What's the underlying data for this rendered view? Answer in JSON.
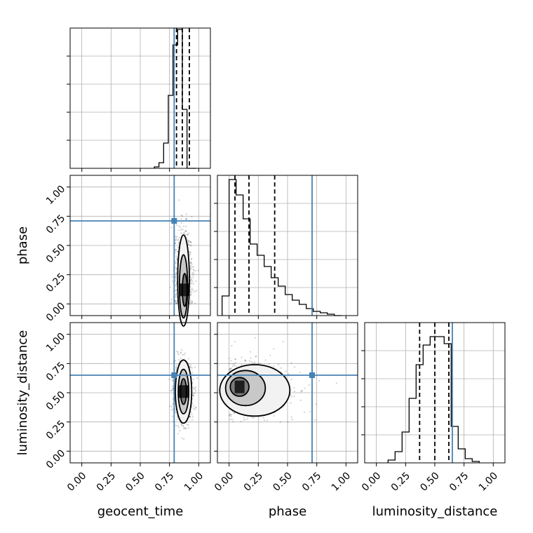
{
  "chart_data": {
    "type": "corner",
    "parameters": [
      "geocent_time",
      "phase",
      "luminosity_distance"
    ],
    "axis_limits": {
      "geocent_time": [
        -0.1,
        1.1
      ],
      "phase": [
        -0.1,
        1.1
      ],
      "luminosity_distance": [
        -0.1,
        1.1
      ]
    },
    "tick_values": [
      0.0,
      0.25,
      0.5,
      0.75,
      1.0
    ],
    "tick_labels": [
      "0.00",
      "0.25",
      "0.50",
      "0.75",
      "1.00"
    ],
    "grid": true,
    "colors": {
      "truth": "#4682b4",
      "hist": "#000000",
      "grid": "#b0b0b0",
      "density": "#000000"
    },
    "truths": {
      "geocent_time": 0.79,
      "phase": 0.71,
      "luminosity_distance": 0.65
    },
    "histograms": [
      {
        "parameter": "geocent_time",
        "bin_edges": [
          0.62,
          0.66,
          0.7,
          0.74,
          0.78,
          0.82,
          0.86,
          0.9,
          0.94,
          0.98
        ],
        "counts": [
          0.01,
          0.04,
          0.18,
          0.52,
          0.88,
          0.99,
          0.42,
          0.0,
          0.0
        ],
        "quantiles": [
          0.81,
          0.86,
          0.92
        ],
        "ylim": [
          0,
          1.0
        ]
      },
      {
        "parameter": "phase",
        "bin_edges": [
          -0.06,
          0.0,
          0.06,
          0.12,
          0.18,
          0.24,
          0.3,
          0.36,
          0.42,
          0.48,
          0.54,
          0.6,
          0.66,
          0.72,
          0.78,
          0.84,
          0.9,
          0.96
        ],
        "counts": [
          0.14,
          0.97,
          0.86,
          0.69,
          0.51,
          0.43,
          0.35,
          0.27,
          0.21,
          0.15,
          0.11,
          0.08,
          0.05,
          0.03,
          0.02,
          0.01,
          0.0
        ],
        "quantiles": [
          0.05,
          0.17,
          0.39
        ],
        "ylim": [
          0,
          1.0
        ]
      },
      {
        "parameter": "luminosity_distance",
        "bin_edges": [
          0.1,
          0.16,
          0.22,
          0.28,
          0.34,
          0.4,
          0.46,
          0.52,
          0.58,
          0.64,
          0.7,
          0.76,
          0.82,
          0.88
        ],
        "counts": [
          0.02,
          0.08,
          0.22,
          0.46,
          0.7,
          0.84,
          0.9,
          0.9,
          0.85,
          0.26,
          0.1,
          0.03,
          0.01
        ],
        "quantiles": [
          0.37,
          0.5,
          0.62
        ],
        "ylim": [
          0,
          1.0
        ]
      }
    ],
    "density_2d": [
      {
        "x": "geocent_time",
        "y": "phase",
        "center": [
          0.87,
          0.14
        ],
        "spread": [
          0.04,
          0.17
        ],
        "contour_levels": [
          {
            "cx": 0.87,
            "cy": 0.2,
            "rx": 0.05,
            "ry": 0.39
          },
          {
            "cx": 0.87,
            "cy": 0.15,
            "rx": 0.035,
            "ry": 0.27
          },
          {
            "cx": 0.88,
            "cy": 0.12,
            "rx": 0.02,
            "ry": 0.14
          }
        ]
      },
      {
        "x": "geocent_time",
        "y": "luminosity_distance",
        "center": [
          0.87,
          0.51
        ],
        "spread": [
          0.04,
          0.12
        ],
        "contour_levels": [
          {
            "cx": 0.87,
            "cy": 0.51,
            "rx": 0.07,
            "ry": 0.27
          },
          {
            "cx": 0.87,
            "cy": 0.51,
            "rx": 0.045,
            "ry": 0.19
          },
          {
            "cx": 0.87,
            "cy": 0.51,
            "rx": 0.025,
            "ry": 0.11
          }
        ]
      },
      {
        "x": "phase",
        "y": "luminosity_distance",
        "center": [
          0.1,
          0.54
        ],
        "spread": [
          0.15,
          0.12
        ],
        "contour_levels": [
          {
            "cx": 0.22,
            "cy": 0.52,
            "rx": 0.3,
            "ry": 0.22
          },
          {
            "cx": 0.14,
            "cy": 0.54,
            "rx": 0.17,
            "ry": 0.15
          },
          {
            "cx": 0.09,
            "cy": 0.55,
            "rx": 0.08,
            "ry": 0.08
          }
        ]
      }
    ]
  }
}
